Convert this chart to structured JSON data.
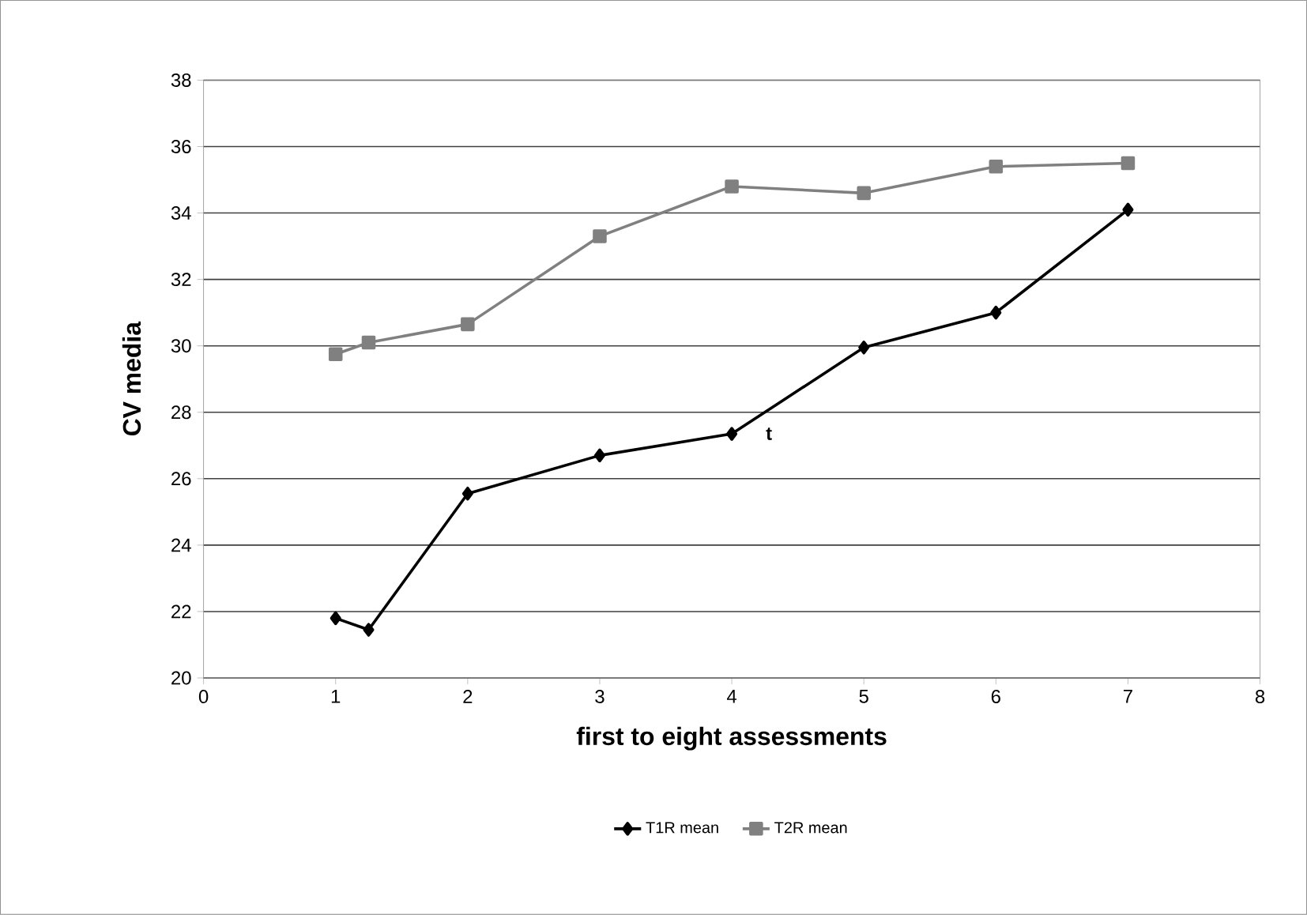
{
  "chart_data": {
    "type": "line",
    "xlabel": "first to eight assessments",
    "ylabel": "CV media",
    "xlim": [
      0,
      8
    ],
    "xticks": [
      0,
      1,
      2,
      3,
      4,
      5,
      6,
      7,
      8
    ],
    "ylim": [
      20,
      38
    ],
    "yticks": [
      20,
      22,
      24,
      26,
      28,
      30,
      32,
      34,
      36,
      38
    ],
    "grid": "y",
    "legend": "bottom",
    "series": [
      {
        "name": "T1R mean",
        "color": "#000000",
        "marker": "diamond",
        "x": [
          1,
          1.25,
          2,
          3,
          4,
          5,
          6,
          7
        ],
        "values": [
          21.8,
          21.45,
          25.55,
          26.7,
          27.35,
          29.95,
          31.0,
          34.1
        ]
      },
      {
        "name": "T2R mean",
        "color": "#808080",
        "marker": "square",
        "x": [
          1,
          1.25,
          2,
          3,
          4,
          5,
          6,
          7
        ],
        "values": [
          29.75,
          30.1,
          30.65,
          33.3,
          34.8,
          34.6,
          35.4,
          35.5
        ]
      }
    ],
    "annotations": [
      {
        "text": "t",
        "x": 4,
        "y": 27.35
      }
    ]
  }
}
